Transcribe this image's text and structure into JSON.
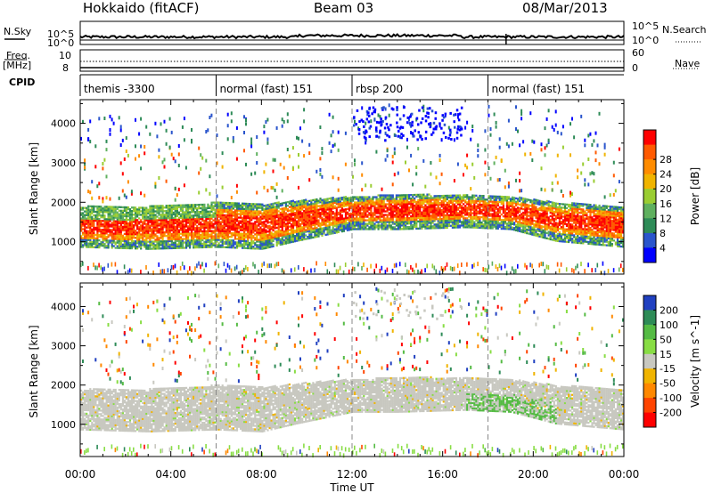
{
  "header": {
    "title": "Hokkaido (fitACF)",
    "beam": "Beam 03",
    "date": "08/Mar/2013"
  },
  "side_labels": {
    "nsky": "N.Sky",
    "nsearch": "N.Search",
    "freq_top": "Freq.",
    "freq_unit": "[MHz]",
    "nave": "Nave",
    "cpid": "CPID"
  },
  "noise_axis": {
    "left_ticks": [
      "10^5",
      "10^0"
    ],
    "right_ticks": [
      "10^5",
      "10^0"
    ]
  },
  "freq_axis": {
    "left_ticks": [
      "10",
      "8"
    ],
    "right_ticks": [
      "60",
      "0"
    ]
  },
  "cpid_segments": [
    {
      "start_h": 0,
      "end_h": 6,
      "label": "themis -3300"
    },
    {
      "start_h": 6,
      "end_h": 12,
      "label": "normal (fast) 151"
    },
    {
      "start_h": 12,
      "end_h": 18,
      "label": "rbsp 200"
    },
    {
      "start_h": 18,
      "end_h": 24,
      "label": "normal (fast) 151"
    }
  ],
  "chart_data": [
    {
      "type": "heatmap",
      "name": "power",
      "xlabel": "",
      "ylabel": "Slant Range [km]",
      "xlim": [
        0,
        24
      ],
      "ylim": [
        180,
        4600
      ],
      "yticks": [
        "1000",
        "2000",
        "3000",
        "4000"
      ],
      "colorbar_label": "Power [dB]",
      "colorbar_ticks": [
        "4",
        "8",
        "12",
        "16",
        "20",
        "24",
        "28"
      ],
      "colorbar_range": [
        0,
        30
      ],
      "colors": [
        "#0000ff",
        "#2a55cc",
        "#2e8b57",
        "#5fb05f",
        "#9acd32",
        "#f0b400",
        "#ff8c00",
        "#ff5a00",
        "#ff0000"
      ],
      "main_echo_band": [
        {
          "t": 0,
          "low": 1000,
          "high": 1800
        },
        {
          "t": 3,
          "low": 950,
          "high": 1800
        },
        {
          "t": 6,
          "low": 1000,
          "high": 1900
        },
        {
          "t": 8,
          "low": 950,
          "high": 1850
        },
        {
          "t": 9.5,
          "low": 1150,
          "high": 1950
        },
        {
          "t": 12,
          "low": 1450,
          "high": 2050
        },
        {
          "t": 14,
          "low": 1450,
          "high": 2100
        },
        {
          "t": 17,
          "low": 1500,
          "high": 2100
        },
        {
          "t": 19,
          "low": 1450,
          "high": 2050
        },
        {
          "t": 21,
          "low": 1150,
          "high": 1900
        },
        {
          "t": 24,
          "low": 1000,
          "high": 1800
        }
      ]
    },
    {
      "type": "heatmap",
      "name": "velocity",
      "xlabel": "Time UT",
      "ylabel": "Slant Range [km]",
      "xlim": [
        0,
        24
      ],
      "ylim": [
        180,
        4600
      ],
      "xticks": [
        "00:00",
        "04:00",
        "08:00",
        "12:00",
        "16:00",
        "20:00",
        "00:00"
      ],
      "yticks": [
        "1000",
        "2000",
        "3000",
        "4000"
      ],
      "colorbar_label": "Velocity [m s^-1]",
      "colorbar_ticks": [
        "200",
        "100",
        "50",
        "15",
        "-15",
        "-50",
        "-100",
        "-200"
      ],
      "colorbar_range": [
        -250,
        250
      ],
      "colors": [
        "#2040c0",
        "#2e8b57",
        "#55bb44",
        "#88dd44",
        "#c8c8c0",
        "#f0b400",
        "#ff8800",
        "#ff4400",
        "#ff0000"
      ]
    }
  ]
}
